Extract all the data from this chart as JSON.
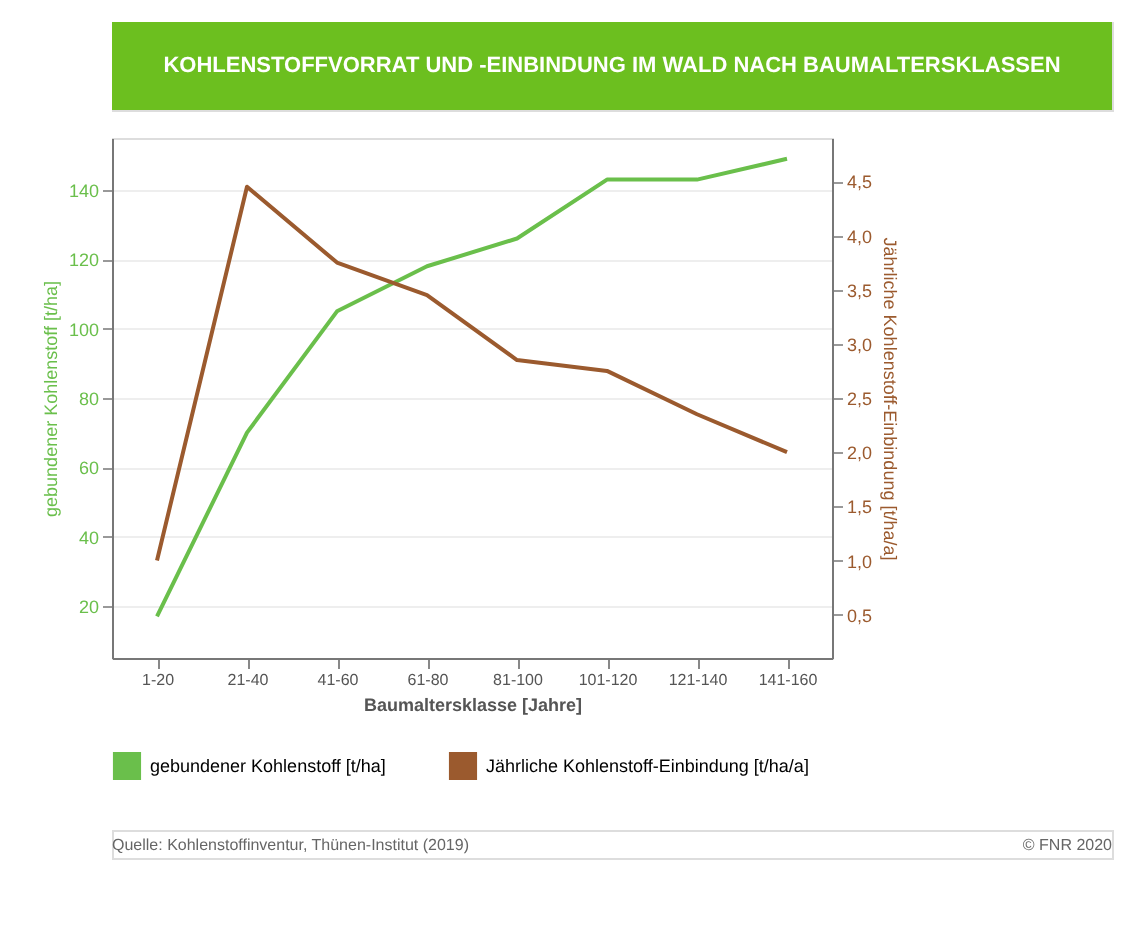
{
  "chart_data": {
    "type": "line",
    "title": "KOHLENSTOFFVORRAT UND -EINBINDUNG IM WALD NACH BAUMALTERSKLASSEN",
    "xlabel": "Baumaltersklasse [Jahre]",
    "ylabel": "gebundener Kohlenstoff [t/ha]",
    "y2label": "Jährliche Kohlenstoff-Einbindung [t/ha/a]",
    "categories": [
      "1-20",
      "21-40",
      "41-60",
      "61-80",
      "81-100",
      "101-120",
      "121-140",
      "141-160"
    ],
    "series": [
      {
        "name": "gebundener Kohlenstoff [t/ha]",
        "color": "#6abf4b",
        "values": [
          17,
          70,
          105,
          118,
          126,
          143,
          143,
          149
        ]
      },
      {
        "name": "Jährliche Kohlenstoff-Einbindung [t/ha/a]",
        "color": "#9b5a2e",
        "axis": "y2",
        "values": [
          1.0,
          4.45,
          3.75,
          3.45,
          2.85,
          2.75,
          2.35,
          2.0
        ]
      }
    ],
    "ylim": [
      5,
      155
    ],
    "yticks": [
      20,
      40,
      60,
      80,
      100,
      120,
      140
    ],
    "y2lim": [
      0.1,
      4.9
    ],
    "y2ticks": [
      {
        "value": 0.5,
        "label": "0,5"
      },
      {
        "value": 1.0,
        "label": "1,0"
      },
      {
        "value": 1.5,
        "label": "1,5"
      },
      {
        "value": 2.0,
        "label": "2,0"
      },
      {
        "value": 2.5,
        "label": "2,5"
      },
      {
        "value": 3.0,
        "label": "3,0"
      },
      {
        "value": 3.5,
        "label": "3,5"
      },
      {
        "value": 4.0,
        "label": "4,0"
      },
      {
        "value": 4.5,
        "label": "4,5"
      }
    ],
    "grid": "y",
    "legend": "bottom",
    "marker": "none",
    "line_style": "solid",
    "annotations": [
      "Quelle: Kohlenstoffinventur, Thünen-Institut (2019)",
      "© FNR 2020"
    ]
  }
}
